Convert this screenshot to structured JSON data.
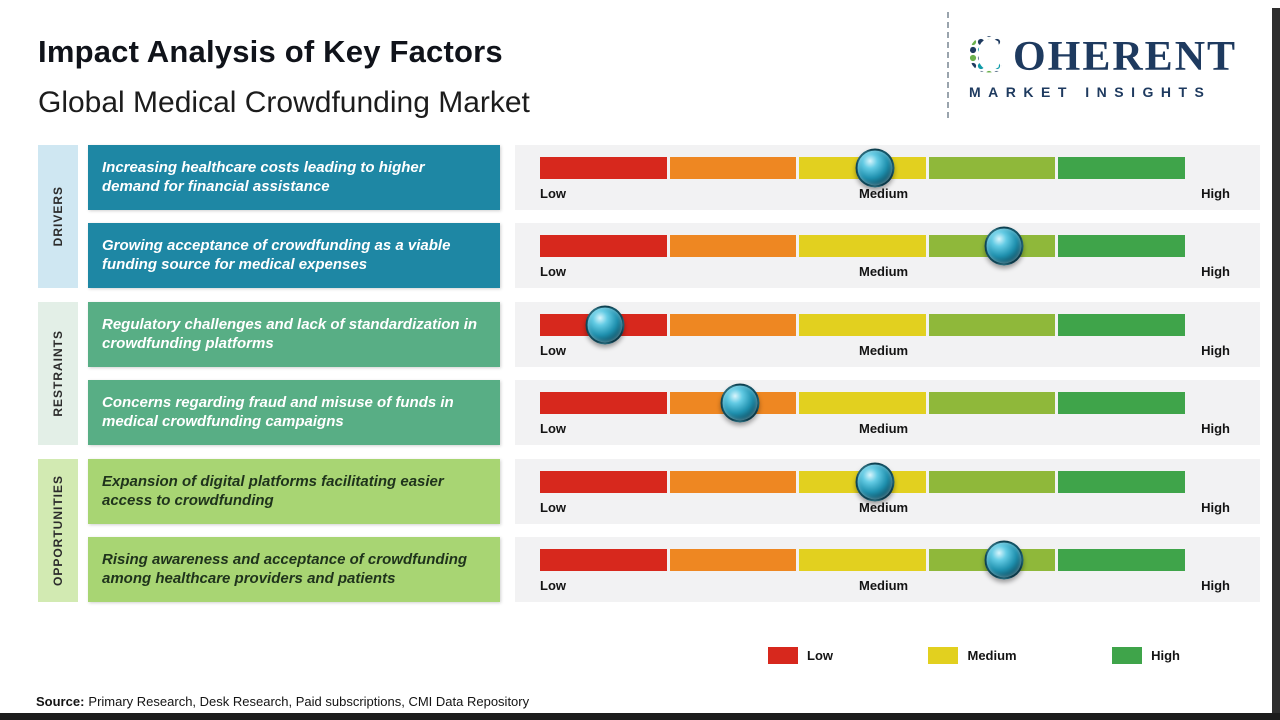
{
  "header": {
    "title": "Impact Analysis of Key Factors",
    "subtitle": "Global Medical Crowdfunding Market"
  },
  "logo": {
    "initial": "C",
    "rest": "OHERENT",
    "tagline": "MARKET INSIGHTS"
  },
  "groups": [
    {
      "label": "DRIVERS"
    },
    {
      "label": "RESTRAINTS"
    },
    {
      "label": "OPPORTUNITIES"
    }
  ],
  "scale": {
    "low": "Low",
    "medium": "Medium",
    "high": "High"
  },
  "scale_colors": [
    "#d7281d",
    "#ee8722",
    "#e2d01f",
    "#8fb83a",
    "#3fa44a"
  ],
  "colors": {
    "drivers-box": "#1e87a4",
    "drivers-tab": "#cfe7f2",
    "restraints-box": "#58ae85",
    "restraints-tab": "#e3efe7",
    "opportunities-box": "#a8d573",
    "opportunities-tab": "#d2eab2",
    "gauge-bg": "#f2f2f3",
    "brand-navy": "#1e3a5f"
  },
  "chart_data": {
    "type": "bar",
    "title": "Impact Analysis of Key Factors",
    "subtitle": "Global Medical Crowdfunding Market",
    "scale_labels": [
      "Low",
      "Medium",
      "High"
    ],
    "xlim_percent": [
      0,
      100
    ],
    "legend_position": "bottom-right",
    "series": [
      {
        "group": "DRIVERS",
        "factor": "Increasing healthcare costs leading to higher demand for financial assistance",
        "impact_percent": 52
      },
      {
        "group": "DRIVERS",
        "factor": "Growing acceptance of crowdfunding as a viable funding source for medical expenses",
        "impact_percent": 72
      },
      {
        "group": "RESTRAINTS",
        "factor": "Regulatory challenges and lack of standardization in crowdfunding platforms",
        "impact_percent": 10
      },
      {
        "group": "RESTRAINTS",
        "factor": "Concerns regarding fraud and misuse of funds in medical crowdfunding campaigns",
        "impact_percent": 31
      },
      {
        "group": "OPPORTUNITIES",
        "factor": "Expansion of digital platforms facilitating easier access to crowdfunding",
        "impact_percent": 52
      },
      {
        "group": "OPPORTUNITIES",
        "factor": "Rising awareness and acceptance of crowdfunding among healthcare providers and patients",
        "impact_percent": 72
      }
    ]
  },
  "legend": [
    {
      "label": "Low",
      "color": "#d7281d"
    },
    {
      "label": "Medium",
      "color": "#e2d01f"
    },
    {
      "label": "High",
      "color": "#3fa44a"
    }
  ],
  "source": {
    "label": "Source:",
    "text": "Primary Research, Desk Research, Paid subscriptions, CMI Data Repository"
  }
}
